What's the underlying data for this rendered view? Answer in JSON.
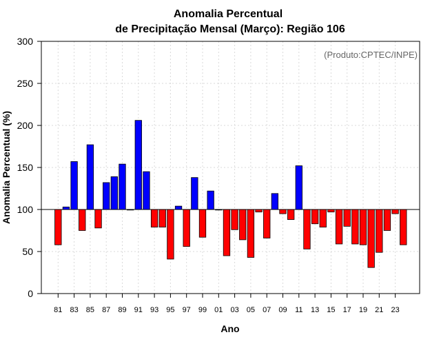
{
  "chart_data": {
    "type": "bar",
    "title": "Anomalia Percentual",
    "subtitle": "de Precipitação Mensal (Março): Região 106",
    "xlabel": "Ano",
    "ylabel": "Anomalia Percentual (%)",
    "credit": "(Produto:CPTEC/INPE)",
    "ylim": [
      0,
      300
    ],
    "yticks": [
      0,
      50,
      100,
      150,
      200,
      250,
      300
    ],
    "baseline": 100,
    "grid": true,
    "colors": {
      "above": "#0000ff",
      "below": "#ff0000",
      "outline": "#000000"
    },
    "categories": [
      "81",
      "82",
      "83",
      "84",
      "85",
      "86",
      "87",
      "88",
      "89",
      "90",
      "91",
      "92",
      "93",
      "94",
      "95",
      "96",
      "97",
      "98",
      "99",
      "00",
      "01",
      "02",
      "03",
      "04",
      "05",
      "06",
      "07",
      "08",
      "09",
      "10",
      "11",
      "12",
      "13",
      "14",
      "15",
      "16",
      "17",
      "18",
      "19",
      "20",
      "21",
      "22",
      "23",
      "24"
    ],
    "xtick_labels": [
      "81",
      "83",
      "85",
      "87",
      "89",
      "91",
      "93",
      "95",
      "97",
      "99",
      "01",
      "03",
      "05",
      "07",
      "09",
      "11",
      "13",
      "15",
      "17",
      "19",
      "21",
      "23"
    ],
    "values": [
      58,
      103,
      157,
      75,
      177,
      78,
      132,
      139,
      154,
      100,
      206,
      145,
      79,
      79,
      41,
      104,
      56,
      138,
      67,
      122,
      100,
      45,
      76,
      64,
      43,
      97,
      66,
      119,
      95,
      88,
      152,
      53,
      83,
      79,
      97,
      59,
      80,
      59,
      58,
      31,
      49,
      75,
      95,
      58
    ]
  }
}
